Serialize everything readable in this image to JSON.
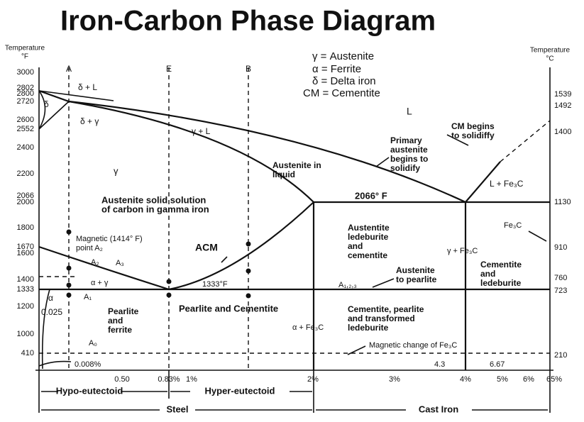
{
  "title": "Iron-Carbon Phase Diagram",
  "axes": {
    "left_label": [
      "Temperature",
      "°F"
    ],
    "right_label": [
      "Temperature",
      "°C"
    ],
    "left_ticks": [
      "3000",
      "2802",
      "2800",
      "2720",
      "2600",
      "2552",
      "2400",
      "2200",
      "2066",
      "2000",
      "1800",
      "1670",
      "1600",
      "1400",
      "1333",
      "1200",
      "1000",
      "410"
    ],
    "right_ticks": [
      "1539",
      "1492",
      "1400",
      "1130",
      "910",
      "760",
      "723",
      "210"
    ],
    "bottom_ticks": [
      "0.50",
      "0.83%",
      "1%",
      "2%",
      "3%",
      "4%",
      "5%",
      "6%",
      "65%"
    ]
  },
  "compositions": [
    "A",
    "E",
    "B"
  ],
  "legend": [
    "γ = Austenite",
    "α = Ferrite",
    "δ = Delta iron",
    "CM = Cementite"
  ],
  "labels": [
    [
      "L"
    ],
    [
      "δ + L"
    ],
    [
      "δ"
    ],
    [
      "δ + γ"
    ],
    [
      "γ + L"
    ],
    [
      "γ"
    ],
    [
      "Austenite in",
      "liquid"
    ],
    [
      "Primary",
      "austenite",
      "begins to",
      "solidify"
    ],
    [
      "CM begins",
      "to solidiffy"
    ],
    [
      "L + Fe₃C"
    ],
    [
      "2066° F"
    ],
    [
      "Austenite solid solution",
      "of carbon in gamma iron"
    ],
    [
      "Magnetic (1414° F)",
      "point A₂"
    ],
    [
      "ACM"
    ],
    [
      "A₂"
    ],
    [
      "A₃"
    ],
    [
      "α + γ"
    ],
    [
      "A₁"
    ],
    [
      "1333°F"
    ],
    [
      "α"
    ],
    [
      "0.025"
    ],
    [
      "Austentite",
      "ledeburite",
      "and",
      "cementite"
    ],
    [
      "γ + Fe₃C"
    ],
    [
      "Fe₃C"
    ],
    [
      "Austenite",
      "to pearlite"
    ],
    [
      "A₁,₂,₃"
    ],
    [
      "Cementite",
      "and",
      "ledeburite"
    ],
    [
      "Pearlite",
      "and",
      "ferrite"
    ],
    [
      "Pearlite and Cementite"
    ],
    [
      "α + Fe₃C"
    ],
    [
      "Cementite, pearlite",
      "and transformed",
      "ledeburite"
    ],
    [
      "A₀"
    ],
    [
      "0.008%"
    ],
    [
      "Magnetic change of Fe₃C"
    ],
    [
      "4.3"
    ],
    [
      "6.67"
    ]
  ],
  "ranges": [
    "Hypo-eutectoid",
    "Hyper-eutectoid",
    "Steel",
    "Cast Iron"
  ]
}
